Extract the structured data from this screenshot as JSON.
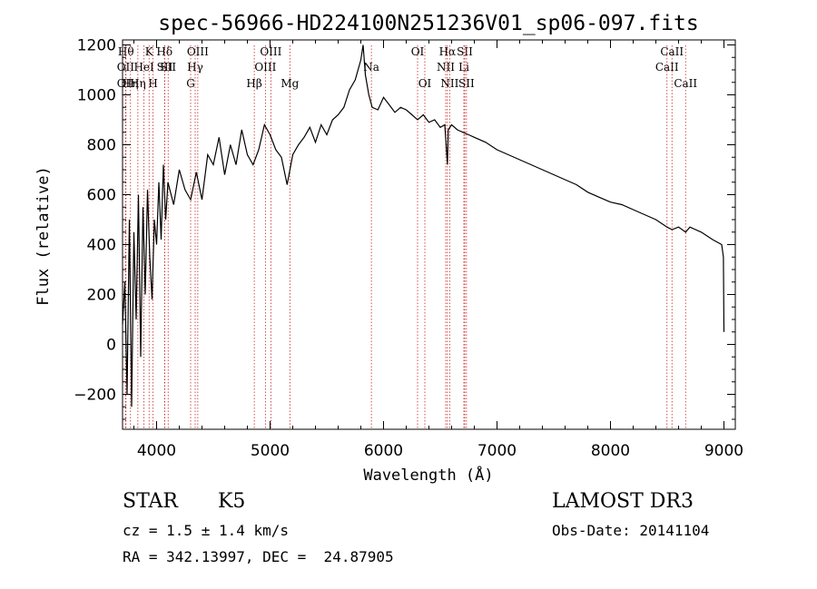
{
  "chart_data": {
    "type": "line",
    "title": "spec-56966-HD224100N251236V01_sp06-097.fits",
    "xlabel": "Wavelength (Å)",
    "ylabel": "Flux (relative)",
    "xlim": [
      3700,
      9100
    ],
    "ylim": [
      -340,
      1220
    ],
    "x_ticks": [
      4000,
      5000,
      6000,
      7000,
      8000,
      9000
    ],
    "x_tick_labels": [
      "4000",
      "5000",
      "6000",
      "7000",
      "8000",
      "9000"
    ],
    "y_ticks": [
      -200,
      0,
      200,
      400,
      600,
      800,
      1000,
      1200
    ],
    "y_tick_labels": [
      "−200",
      "0",
      "200",
      "400",
      "600",
      "800",
      "1000",
      "1200"
    ],
    "grid": false,
    "series": [
      {
        "name": "flux",
        "x": [
          3700,
          3720,
          3740,
          3760,
          3780,
          3800,
          3820,
          3840,
          3860,
          3880,
          3900,
          3920,
          3940,
          3960,
          3980,
          4000,
          4020,
          4040,
          4060,
          4080,
          4100,
          4150,
          4200,
          4250,
          4300,
          4350,
          4400,
          4450,
          4500,
          4550,
          4600,
          4650,
          4700,
          4750,
          4800,
          4850,
          4900,
          4950,
          5000,
          5050,
          5100,
          5150,
          5200,
          5250,
          5300,
          5350,
          5400,
          5450,
          5500,
          5550,
          5600,
          5650,
          5700,
          5750,
          5800,
          5820,
          5840,
          5870,
          5900,
          5950,
          6000,
          6050,
          6100,
          6150,
          6200,
          6250,
          6300,
          6350,
          6400,
          6450,
          6500,
          6540,
          6563,
          6570,
          6600,
          6650,
          6700,
          6750,
          6800,
          6900,
          7000,
          7100,
          7200,
          7300,
          7400,
          7500,
          7600,
          7700,
          7800,
          7900,
          8000,
          8100,
          8200,
          8300,
          8400,
          8498,
          8542,
          8600,
          8662,
          8700,
          8800,
          8900,
          8980,
          8995,
          9000
        ],
        "y": [
          80,
          250,
          -200,
          500,
          -250,
          450,
          100,
          600,
          -50,
          550,
          200,
          620,
          350,
          180,
          500,
          400,
          650,
          420,
          720,
          500,
          650,
          560,
          700,
          620,
          580,
          690,
          580,
          760,
          720,
          830,
          680,
          800,
          720,
          860,
          760,
          720,
          780,
          880,
          840,
          780,
          750,
          640,
          760,
          800,
          830,
          870,
          810,
          880,
          840,
          900,
          920,
          950,
          1020,
          1060,
          1140,
          1200,
          1080,
          1000,
          950,
          940,
          990,
          960,
          930,
          950,
          940,
          920,
          900,
          920,
          890,
          900,
          870,
          880,
          720,
          860,
          880,
          860,
          850,
          840,
          830,
          810,
          780,
          760,
          740,
          720,
          700,
          680,
          660,
          640,
          610,
          590,
          570,
          560,
          540,
          520,
          500,
          470,
          460,
          470,
          450,
          470,
          450,
          420,
          400,
          350,
          50
        ]
      }
    ],
    "lines": [
      {
        "x": 3730,
        "label": "Hθ",
        "row": 0
      },
      {
        "x": 3727,
        "label": "OII",
        "row": 1
      },
      {
        "x": 3727,
        "label": "OII",
        "row": 2
      },
      {
        "x": 3770,
        "label": "Hη",
        "row": 2
      },
      {
        "x": 3835,
        "label": "Hη",
        "row": 2
      },
      {
        "x": 3889,
        "label": "HeI",
        "row": 1
      },
      {
        "x": 3934,
        "label": "K",
        "row": 0
      },
      {
        "x": 3969,
        "label": "H",
        "row": 2
      },
      {
        "x": 4070,
        "label": "Hδ",
        "row": 0
      },
      {
        "x": 4072,
        "label": "SII",
        "row": 1
      },
      {
        "x": 4102,
        "label": "SII",
        "row": 1
      },
      {
        "x": 4300,
        "label": "G",
        "row": 2
      },
      {
        "x": 4340,
        "label": "Hγ",
        "row": 1
      },
      {
        "x": 4363,
        "label": "OIII",
        "row": 0
      },
      {
        "x": 4861,
        "label": "Hβ",
        "row": 2
      },
      {
        "x": 4959,
        "label": "OIII",
        "row": 1
      },
      {
        "x": 5007,
        "label": "OIII",
        "row": 0
      },
      {
        "x": 5175,
        "label": "Mg",
        "row": 2
      },
      {
        "x": 5893,
        "label": "Na",
        "row": 1
      },
      {
        "x": 6300,
        "label": "OI",
        "row": 0
      },
      {
        "x": 6364,
        "label": "OI",
        "row": 2
      },
      {
        "x": 6548,
        "label": "NII",
        "row": 1
      },
      {
        "x": 6563,
        "label": "Hα",
        "row": 0
      },
      {
        "x": 6583,
        "label": "NII",
        "row": 2
      },
      {
        "x": 6708,
        "label": "Li",
        "row": 1
      },
      {
        "x": 6716,
        "label": "SII",
        "row": 0
      },
      {
        "x": 6731,
        "label": "SII",
        "row": 2
      },
      {
        "x": 8498,
        "label": "CaII",
        "row": 1
      },
      {
        "x": 8542,
        "label": "CaII",
        "row": 0
      },
      {
        "x": 8662,
        "label": "CaII",
        "row": 2
      }
    ]
  },
  "info": {
    "object_class": "STAR",
    "subclass": "K5",
    "survey": "LAMOST DR3",
    "cz": "cz = 1.5 ± 1.4 km/s",
    "obs_date": "Obs-Date: 20141104",
    "coords": "RA = 342.13997, DEC =  24.87905"
  },
  "colors": {
    "spectrum": "#000000",
    "line_marker": "#cc2222",
    "axis": "#000000"
  }
}
